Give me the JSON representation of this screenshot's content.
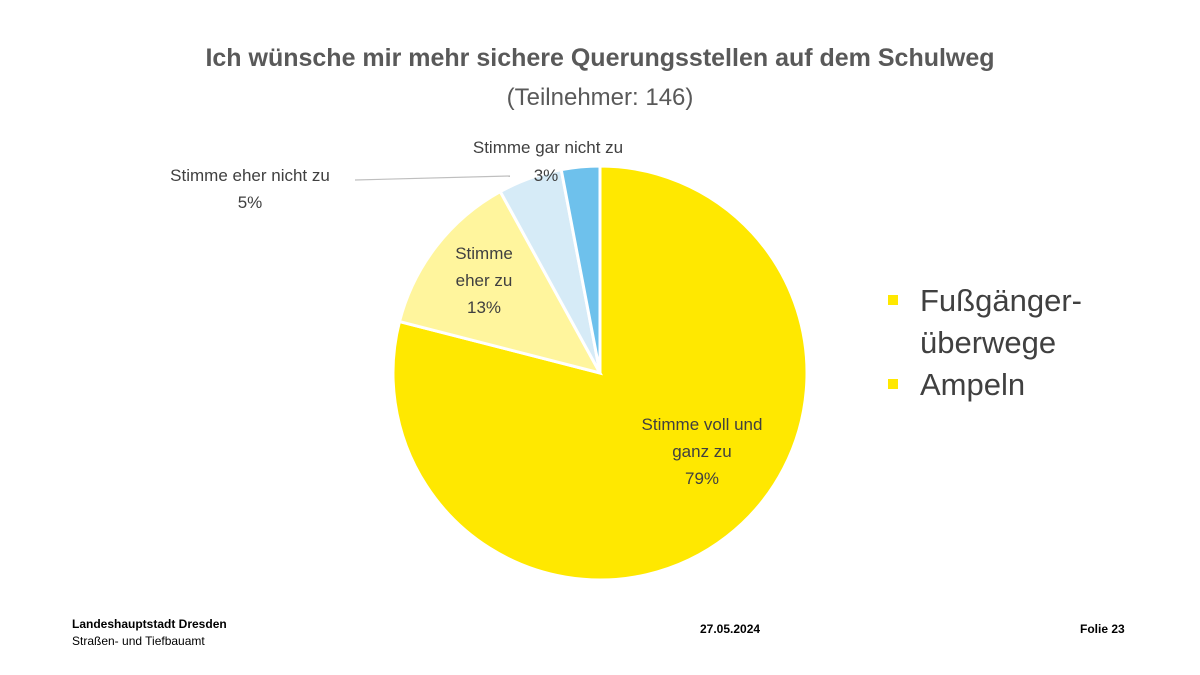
{
  "chart_data": {
    "type": "pie",
    "title": "Ich wünsche mir mehr sichere Querungsstellen auf dem Schulweg",
    "subtitle": "(Teilnehmer: 146)",
    "slices": [
      {
        "label": "Stimme voll und ganz zu",
        "label_lines": [
          "Stimme voll und",
          "ganz zu"
        ],
        "value": 79,
        "value_label": "79%",
        "color": "#FFE800"
      },
      {
        "label": "Stimme eher zu",
        "label_lines": [
          "Stimme",
          "eher zu"
        ],
        "value": 13,
        "value_label": "13%",
        "color": "#FFF59D"
      },
      {
        "label": "Stimme eher nicht zu",
        "label_lines": [
          "Stimme eher nicht zu"
        ],
        "value": 5,
        "value_label": "5%",
        "color": "#D6EBF7"
      },
      {
        "label": "Stimme gar nicht zu",
        "label_lines": [
          "Stimme gar nicht zu"
        ],
        "value": 3,
        "value_label": "3%",
        "color": "#6EC1EC"
      }
    ]
  },
  "legend": {
    "bullet_color": "#FFE800",
    "items": [
      {
        "label": "Fußgänger-überwege"
      },
      {
        "label": "Ampeln"
      }
    ]
  },
  "footer": {
    "org_name": "Landeshauptstadt Dresden",
    "department": "Straßen- und Tiefbauamt",
    "date": "27.05.2024",
    "slide": "Folie 23"
  }
}
